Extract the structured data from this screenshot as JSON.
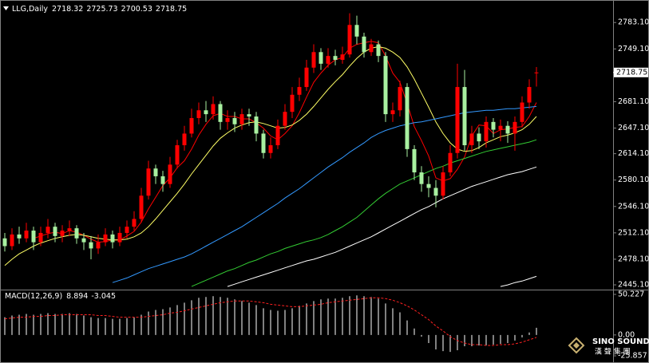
{
  "chart_data": [
    {
      "type": "candlestick",
      "title": "LLG,Daily",
      "ylim": [
        2440,
        2808
      ],
      "yticks": [
        {
          "value": 2783.1,
          "label": "2783.10"
        },
        {
          "value": 2749.1,
          "label": "2749.10"
        },
        {
          "value": 2681.1,
          "label": "2681.10"
        },
        {
          "value": 2647.1,
          "label": "2647.10"
        },
        {
          "value": 2614.1,
          "label": "2614.10"
        },
        {
          "value": 2580.1,
          "label": "2580.10"
        },
        {
          "value": 2546.1,
          "label": "2546.10"
        },
        {
          "value": 2512.1,
          "label": "2512.10"
        },
        {
          "value": 2478.1,
          "label": "2478.10"
        },
        {
          "value": 2445.1,
          "label": "2445.10"
        }
      ],
      "up_color": "#ff0000",
      "down_color": "#a8f0a0",
      "candles": {
        "open": [
          2505,
          2495,
          2510,
          2505,
          2515,
          2500,
          2512,
          2520,
          2508,
          2515,
          2518,
          2505,
          2500,
          2492,
          2500,
          2510,
          2500,
          2512,
          2520,
          2530,
          2560,
          2595,
          2585,
          2575,
          2600,
          2625,
          2640,
          2660,
          2670,
          2665,
          2678,
          2655,
          2660,
          2652,
          2665,
          2662,
          2640,
          2615,
          2625,
          2650,
          2668,
          2690,
          2700,
          2725,
          2745,
          2730,
          2740,
          2735,
          2742,
          2780,
          2765,
          2745,
          2755,
          2740,
          2665,
          2670,
          2700,
          2620,
          2590,
          2575,
          2570,
          2560,
          2590,
          2615,
          2700,
          2625,
          2640,
          2630,
          2655,
          2645,
          2650,
          2640,
          2655,
          2680,
          2718.32
        ],
        "high": [
          2512,
          2518,
          2520,
          2525,
          2520,
          2520,
          2530,
          2525,
          2522,
          2528,
          2522,
          2512,
          2508,
          2510,
          2518,
          2515,
          2520,
          2528,
          2540,
          2570,
          2605,
          2600,
          2592,
          2610,
          2632,
          2650,
          2672,
          2680,
          2682,
          2688,
          2682,
          2670,
          2668,
          2672,
          2672,
          2668,
          2645,
          2635,
          2658,
          2678,
          2700,
          2712,
          2735,
          2755,
          2750,
          2750,
          2748,
          2752,
          2795,
          2792,
          2770,
          2762,
          2760,
          2745,
          2680,
          2708,
          2705,
          2625,
          2598,
          2585,
          2580,
          2598,
          2625,
          2730,
          2722,
          2650,
          2648,
          2662,
          2660,
          2658,
          2656,
          2662,
          2688,
          2710,
          2725.73
        ],
        "low": [
          2488,
          2490,
          2498,
          2500,
          2490,
          2495,
          2505,
          2500,
          2500,
          2508,
          2498,
          2490,
          2478,
          2485,
          2495,
          2492,
          2495,
          2505,
          2515,
          2525,
          2555,
          2575,
          2565,
          2570,
          2595,
          2618,
          2635,
          2652,
          2655,
          2658,
          2645,
          2645,
          2642,
          2645,
          2650,
          2630,
          2608,
          2608,
          2620,
          2645,
          2660,
          2682,
          2695,
          2718,
          2722,
          2725,
          2728,
          2730,
          2738,
          2755,
          2738,
          2740,
          2732,
          2655,
          2655,
          2662,
          2610,
          2580,
          2565,
          2558,
          2545,
          2555,
          2585,
          2608,
          2618,
          2615,
          2620,
          2622,
          2635,
          2630,
          2628,
          2618,
          2648,
          2672,
          2700.53
        ],
        "close": [
          2495,
          2510,
          2505,
          2515,
          2500,
          2512,
          2520,
          2508,
          2515,
          2518,
          2505,
          2500,
          2492,
          2500,
          2510,
          2500,
          2512,
          2520,
          2530,
          2560,
          2595,
          2585,
          2575,
          2600,
          2625,
          2640,
          2660,
          2670,
          2665,
          2678,
          2655,
          2660,
          2652,
          2665,
          2662,
          2640,
          2615,
          2625,
          2650,
          2668,
          2690,
          2700,
          2725,
          2745,
          2730,
          2740,
          2735,
          2742,
          2780,
          2765,
          2745,
          2755,
          2740,
          2665,
          2670,
          2700,
          2620,
          2590,
          2575,
          2570,
          2560,
          2590,
          2615,
          2700,
          2625,
          2640,
          2630,
          2655,
          2645,
          2650,
          2640,
          2655,
          2680,
          2700,
          2718.75
        ]
      },
      "series": [
        {
          "color": "#ff0000",
          "values": [
            null,
            null,
            null,
            null,
            2505,
            2508,
            2511,
            2513,
            2511,
            2515,
            2513,
            2509,
            2504,
            2500,
            2501,
            2503,
            2503,
            2508,
            2514,
            2526,
            2543,
            2558,
            2573,
            2583,
            2596,
            2605,
            2620,
            2638,
            2652,
            2663,
            2666,
            2662,
            2662,
            2659,
            2659,
            2654,
            2647,
            2637,
            2632,
            2640,
            2650,
            2667,
            2687,
            2706,
            2718,
            2728,
            2735,
            2738,
            2750,
            2755,
            2757,
            2759,
            2757,
            2740,
            2718,
            2706,
            2679,
            2649,
            2631,
            2611,
            2583,
            2579,
            2582,
            2594,
            2610,
            2637,
            2651,
            2650,
            2640,
            2645,
            2646,
            2648,
            2649,
            2662,
            2680
          ]
        },
        {
          "color": "#ffff66",
          "values": [
            2470,
            2478,
            2485,
            2490,
            2495,
            2499,
            2502,
            2505,
            2507,
            2509,
            2510,
            2509,
            2507,
            2505,
            2504,
            2503,
            2503,
            2504,
            2507,
            2512,
            2520,
            2530,
            2541,
            2552,
            2563,
            2575,
            2588,
            2600,
            2612,
            2624,
            2634,
            2641,
            2647,
            2651,
            2654,
            2655,
            2653,
            2650,
            2647,
            2648,
            2651,
            2657,
            2665,
            2675,
            2686,
            2697,
            2707,
            2716,
            2727,
            2737,
            2745,
            2750,
            2752,
            2750,
            2745,
            2738,
            2726,
            2710,
            2692,
            2674,
            2655,
            2640,
            2628,
            2620,
            2617,
            2618,
            2622,
            2628,
            2632,
            2636,
            2638,
            2641,
            2645,
            2652,
            2662
          ]
        },
        {
          "color": "#3399ff",
          "values": [
            null,
            null,
            null,
            null,
            null,
            null,
            null,
            null,
            null,
            null,
            null,
            null,
            null,
            null,
            null,
            2448,
            2451,
            2454,
            2458,
            2462,
            2466,
            2469,
            2472,
            2475,
            2478,
            2481,
            2485,
            2490,
            2495,
            2500,
            2505,
            2510,
            2515,
            2520,
            2526,
            2532,
            2538,
            2544,
            2550,
            2557,
            2563,
            2569,
            2576,
            2583,
            2590,
            2597,
            2603,
            2609,
            2616,
            2622,
            2628,
            2635,
            2640,
            2644,
            2647,
            2650,
            2652,
            2654,
            2655,
            2657,
            2659,
            2661,
            2663,
            2665,
            2667,
            2668,
            2669,
            2670,
            2670,
            2671,
            2672,
            2672,
            2673,
            2674,
            2675
          ]
        },
        {
          "color": "#33cc33",
          "values": [
            null,
            null,
            null,
            null,
            null,
            null,
            null,
            null,
            null,
            null,
            null,
            null,
            null,
            null,
            null,
            null,
            null,
            null,
            null,
            null,
            null,
            null,
            null,
            null,
            null,
            null,
            2443,
            2447,
            2451,
            2455,
            2459,
            2463,
            2466,
            2470,
            2474,
            2477,
            2481,
            2485,
            2488,
            2492,
            2495,
            2498,
            2501,
            2503,
            2506,
            2510,
            2515,
            2520,
            2526,
            2532,
            2540,
            2548,
            2556,
            2563,
            2569,
            2575,
            2579,
            2583,
            2587,
            2591,
            2595,
            2598,
            2602,
            2605,
            2608,
            2611,
            2614,
            2617,
            2619,
            2621,
            2623,
            2625,
            2627,
            2629,
            2632
          ]
        },
        {
          "color": "#ffffff",
          "values": [
            null,
            null,
            null,
            null,
            null,
            null,
            null,
            null,
            null,
            null,
            null,
            null,
            null,
            null,
            null,
            null,
            null,
            null,
            null,
            null,
            null,
            null,
            null,
            null,
            null,
            null,
            null,
            null,
            null,
            null,
            null,
            2443,
            2446,
            2449,
            2452,
            2455,
            2458,
            2461,
            2464,
            2467,
            2470,
            2473,
            2476,
            2478,
            2481,
            2484,
            2487,
            2491,
            2495,
            2499,
            2503,
            2507,
            2512,
            2517,
            2522,
            2527,
            2532,
            2537,
            2542,
            2546,
            2551,
            2556,
            2560,
            2564,
            2568,
            2572,
            2575,
            2578,
            2581,
            2584,
            2587,
            2589,
            2591,
            2594,
            2597
          ]
        },
        {
          "color": "#ffffff",
          "values": [
            null,
            null,
            null,
            null,
            null,
            null,
            null,
            null,
            null,
            null,
            null,
            null,
            null,
            null,
            null,
            null,
            null,
            null,
            null,
            null,
            null,
            null,
            null,
            null,
            null,
            null,
            null,
            null,
            null,
            null,
            null,
            null,
            null,
            null,
            null,
            null,
            null,
            null,
            null,
            null,
            null,
            null,
            null,
            null,
            null,
            null,
            null,
            null,
            null,
            null,
            null,
            null,
            null,
            null,
            null,
            null,
            null,
            null,
            null,
            null,
            null,
            null,
            null,
            null,
            null,
            null,
            null,
            null,
            null,
            2443,
            2445,
            2448,
            2450,
            2453,
            2456
          ]
        }
      ]
    },
    {
      "type": "macd",
      "title": "MACD(12,26,9)",
      "ylim": [
        -25.857,
        50.227
      ],
      "yticks": [
        50.227,
        {
          "value": 0,
          "label": "0.00"
        },
        -25.857
      ],
      "histogram": {
        "color": "#ffffff",
        "values": [
          22,
          24,
          25,
          26,
          25,
          26,
          27,
          26,
          26,
          27,
          26,
          24,
          22,
          21,
          21,
          20,
          20,
          21,
          22,
          25,
          29,
          31,
          32,
          34,
          37,
          40,
          43,
          46,
          47,
          48,
          47,
          46,
          44,
          42,
          40,
          37,
          33,
          31,
          30,
          31,
          33,
          36,
          39,
          42,
          44,
          45,
          45,
          46,
          48,
          49,
          48,
          47,
          45,
          39,
          33,
          28,
          18,
          8,
          -2,
          -10,
          -18,
          -20,
          -21,
          -19,
          -14,
          -14,
          -13,
          -13,
          -12,
          -11,
          -10,
          -7,
          -3,
          3,
          8.894
        ]
      },
      "signal": {
        "color": "#ff2020",
        "line_style": "dashed",
        "values": [
          20,
          21,
          22,
          22,
          23,
          23,
          24,
          24,
          25,
          25,
          25,
          25,
          25,
          24,
          24,
          23,
          22,
          22,
          22,
          22,
          23,
          24,
          25,
          27,
          28,
          30,
          32,
          34,
          36,
          38,
          40,
          41,
          42,
          42,
          42,
          41,
          40,
          38,
          37,
          36,
          35,
          35,
          36,
          37,
          38,
          40,
          41,
          42,
          43,
          44,
          45,
          46,
          46,
          45,
          43,
          40,
          36,
          31,
          25,
          19,
          11,
          5,
          -2,
          -7,
          -10,
          -12,
          -12,
          -13,
          -13,
          -12,
          -12,
          -11,
          -9,
          -6,
          -3.045
        ]
      }
    }
  ],
  "watermark": {
    "brand": "SINO SOUND",
    "subtitle": "漢 聲 集 團"
  }
}
